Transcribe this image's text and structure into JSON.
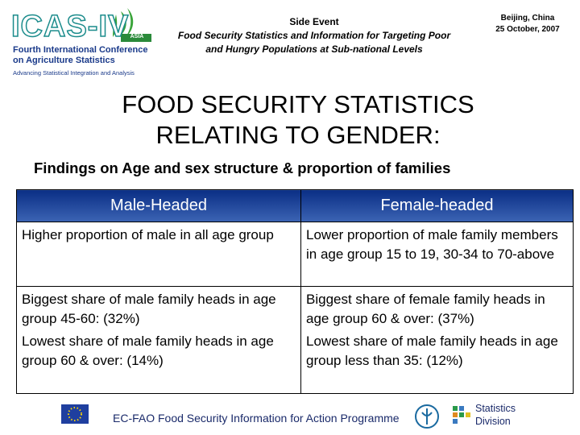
{
  "header": {
    "logo": {
      "name": "ICAS-IV",
      "region": "ASIA",
      "conference": [
        "Fourth International Conference",
        "on Agriculture Statistics"
      ],
      "tagline": "Advancing Statistical Integration and Analysis"
    },
    "event": [
      "Side Event",
      "Food Security Statistics and Information for Targeting Poor",
      "and Hungry Populations at Sub-national Levels"
    ],
    "place": [
      "Beijing, China",
      "25 October, 2007"
    ]
  },
  "title": [
    "FOOD SECURITY STATISTICS",
    "RELATING TO GENDER:"
  ],
  "subtitle": "Findings on Age and sex structure & proportion of families",
  "table": {
    "columns": [
      "Male-Headed",
      "Female-headed"
    ],
    "rows": [
      [
        [
          "Higher proportion of male in all age group"
        ],
        [
          "Lower proportion of male family members in age group 15 to 19, 30-34 to 70-above"
        ]
      ],
      [
        [
          "Biggest share of male family heads in age group 45-60: (32%)",
          "Lowest share of male family heads in age group 60 & over: (14%)"
        ],
        [
          "Biggest share of female family heads in age group 60 & over: (37%)",
          "Lowest share of male family heads in age group less than 35: (12%)"
        ]
      ]
    ]
  },
  "footer": {
    "programme": "EC-FAO Food Security Information for Action Programme",
    "division": [
      "Statistics",
      "Division"
    ]
  }
}
